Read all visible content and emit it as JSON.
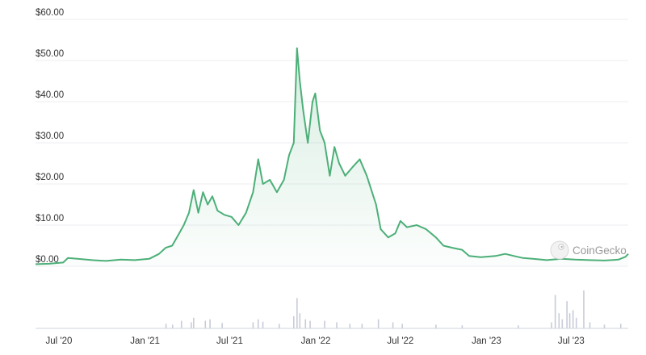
{
  "chart_data": {
    "type": "area",
    "title": "",
    "xlabel": "",
    "ylabel": "",
    "x_range": [
      "2020-05-12",
      "2023-10-31"
    ],
    "ylim": [
      0,
      60
    ],
    "grid": true,
    "legend": "none",
    "y_ticks": [
      {
        "value": 0,
        "label": "$0.00"
      },
      {
        "value": 10,
        "label": "$10.00"
      },
      {
        "value": 20,
        "label": "$20.00"
      },
      {
        "value": 30,
        "label": "$30.00"
      },
      {
        "value": 40,
        "label": "$40.00"
      },
      {
        "value": 50,
        "label": "$50.00"
      },
      {
        "value": 60,
        "label": "$60.00"
      }
    ],
    "x_ticks": [
      {
        "date": "2020-07-01",
        "label": "Jul '20"
      },
      {
        "date": "2021-01-01",
        "label": "Jan '21"
      },
      {
        "date": "2021-07-01",
        "label": "Jul '21"
      },
      {
        "date": "2022-01-01",
        "label": "Jan '22"
      },
      {
        "date": "2022-07-01",
        "label": "Jul '22"
      },
      {
        "date": "2023-01-01",
        "label": "Jan '23"
      },
      {
        "date": "2023-07-01",
        "label": "Jul '23"
      }
    ],
    "series": [
      {
        "color": "#4caf78",
        "points": [
          [
            "2020-05-12",
            0.5
          ],
          [
            "2020-06-10",
            0.6
          ],
          [
            "2020-07-10",
            0.9
          ],
          [
            "2020-07-20",
            2.0
          ],
          [
            "2020-08-10",
            1.8
          ],
          [
            "2020-09-10",
            1.5
          ],
          [
            "2020-10-10",
            1.3
          ],
          [
            "2020-11-10",
            1.6
          ],
          [
            "2020-12-10",
            1.5
          ],
          [
            "2021-01-10",
            1.8
          ],
          [
            "2021-01-31",
            3.0
          ],
          [
            "2021-02-14",
            4.5
          ],
          [
            "2021-02-28",
            5.0
          ],
          [
            "2021-03-15",
            8.0
          ],
          [
            "2021-03-25",
            10.0
          ],
          [
            "2021-04-05",
            13.0
          ],
          [
            "2021-04-15",
            18.5
          ],
          [
            "2021-04-25",
            13.0
          ],
          [
            "2021-05-05",
            18.0
          ],
          [
            "2021-05-15",
            15.0
          ],
          [
            "2021-05-25",
            17.0
          ],
          [
            "2021-06-05",
            13.5
          ],
          [
            "2021-06-20",
            12.5
          ],
          [
            "2021-07-05",
            12.0
          ],
          [
            "2021-07-20",
            10.0
          ],
          [
            "2021-08-05",
            13.0
          ],
          [
            "2021-08-20",
            18.0
          ],
          [
            "2021-08-31",
            26.0
          ],
          [
            "2021-09-10",
            20.0
          ],
          [
            "2021-09-25",
            21.0
          ],
          [
            "2021-10-10",
            18.0
          ],
          [
            "2021-10-25",
            21.0
          ],
          [
            "2021-11-05",
            27.0
          ],
          [
            "2021-11-15",
            30.0
          ],
          [
            "2021-11-22",
            53.0
          ],
          [
            "2021-11-28",
            45.0
          ],
          [
            "2021-12-05",
            38.0
          ],
          [
            "2021-12-15",
            30.0
          ],
          [
            "2021-12-25",
            40.0
          ],
          [
            "2021-12-31",
            42.0
          ],
          [
            "2022-01-10",
            33.0
          ],
          [
            "2022-01-20",
            30.0
          ],
          [
            "2022-01-31",
            22.0
          ],
          [
            "2022-02-10",
            29.0
          ],
          [
            "2022-02-20",
            25.0
          ],
          [
            "2022-03-05",
            22.0
          ],
          [
            "2022-03-20",
            24.0
          ],
          [
            "2022-04-05",
            26.0
          ],
          [
            "2022-04-20",
            22.0
          ],
          [
            "2022-05-10",
            15.0
          ],
          [
            "2022-05-20",
            9.0
          ],
          [
            "2022-06-05",
            7.0
          ],
          [
            "2022-06-20",
            8.0
          ],
          [
            "2022-07-01",
            11.0
          ],
          [
            "2022-07-15",
            9.5
          ],
          [
            "2022-08-05",
            10.0
          ],
          [
            "2022-08-25",
            9.0
          ],
          [
            "2022-09-15",
            7.0
          ],
          [
            "2022-10-01",
            5.0
          ],
          [
            "2022-10-20",
            4.5
          ],
          [
            "2022-11-10",
            4.0
          ],
          [
            "2022-11-25",
            2.5
          ],
          [
            "2022-12-20",
            2.2
          ],
          [
            "2023-01-20",
            2.5
          ],
          [
            "2023-02-10",
            3.0
          ],
          [
            "2023-03-01",
            2.5
          ],
          [
            "2023-03-20",
            2.0
          ],
          [
            "2023-04-10",
            1.8
          ],
          [
            "2023-05-10",
            1.5
          ],
          [
            "2023-06-10",
            1.8
          ],
          [
            "2023-07-10",
            1.6
          ],
          [
            "2023-08-10",
            1.5
          ],
          [
            "2023-09-10",
            1.4
          ],
          [
            "2023-10-10",
            1.6
          ],
          [
            "2023-10-25",
            2.3
          ],
          [
            "2023-10-31",
            3.0
          ]
        ]
      }
    ],
    "volume": {
      "color": "#c8ccd8",
      "bars": [
        [
          "2021-02-15",
          0.15
        ],
        [
          "2021-03-01",
          0.12
        ],
        [
          "2021-03-20",
          0.25
        ],
        [
          "2021-04-10",
          0.2
        ],
        [
          "2021-04-15",
          0.35
        ],
        [
          "2021-05-10",
          0.25
        ],
        [
          "2021-05-20",
          0.3
        ],
        [
          "2021-06-15",
          0.18
        ],
        [
          "2021-08-20",
          0.2
        ],
        [
          "2021-08-31",
          0.3
        ],
        [
          "2021-09-10",
          0.22
        ],
        [
          "2021-10-15",
          0.15
        ],
        [
          "2021-11-15",
          0.4
        ],
        [
          "2021-11-22",
          1.0
        ],
        [
          "2021-11-28",
          0.5
        ],
        [
          "2021-12-10",
          0.3
        ],
        [
          "2021-12-20",
          0.25
        ],
        [
          "2022-01-20",
          0.25
        ],
        [
          "2022-02-15",
          0.2
        ],
        [
          "2022-03-15",
          0.15
        ],
        [
          "2022-04-10",
          0.15
        ],
        [
          "2022-05-15",
          0.3
        ],
        [
          "2022-06-15",
          0.2
        ],
        [
          "2022-07-05",
          0.15
        ],
        [
          "2022-09-15",
          0.12
        ],
        [
          "2022-11-10",
          0.1
        ],
        [
          "2023-03-10",
          0.1
        ],
        [
          "2023-05-20",
          0.2
        ],
        [
          "2023-05-28",
          1.1
        ],
        [
          "2023-06-05",
          0.5
        ],
        [
          "2023-06-12",
          0.3
        ],
        [
          "2023-06-22",
          0.9
        ],
        [
          "2023-06-28",
          0.5
        ],
        [
          "2023-07-05",
          0.6
        ],
        [
          "2023-07-12",
          0.35
        ],
        [
          "2023-07-28",
          1.25
        ],
        [
          "2023-08-10",
          0.2
        ],
        [
          "2023-09-10",
          0.12
        ],
        [
          "2023-10-15",
          0.15
        ]
      ]
    },
    "watermark": {
      "text": "CoinGecko"
    }
  }
}
